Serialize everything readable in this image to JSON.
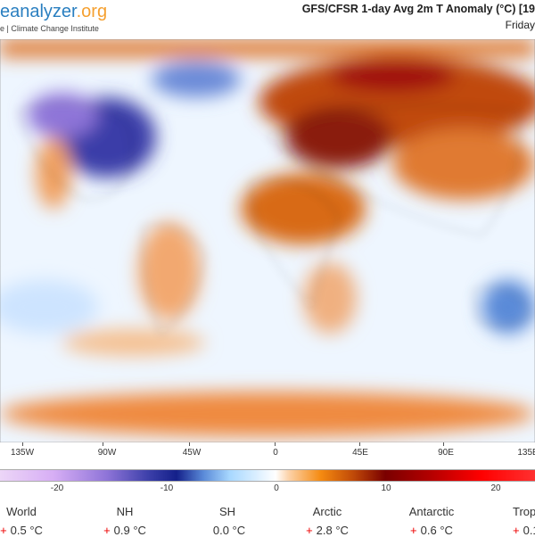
{
  "header": {
    "logo_main": "eanalyzer",
    "logo_suffix": ".org",
    "subtitle": "e | Climate Change Institute",
    "title": "GFS/CFSR 1-day Avg 2m T Anomaly (°C) [19",
    "date": "Friday"
  },
  "map": {
    "longitude_ticks": [
      "135W",
      "90W",
      "45W",
      "0",
      "45E",
      "90E",
      "135E"
    ]
  },
  "colorbar": {
    "labels": [
      "-20",
      "-10",
      "0",
      "10",
      "20"
    ],
    "range": [
      -25,
      25
    ],
    "colors": {
      "cold": "#14208a",
      "neutral": "#ffffff",
      "warm": "#f58a10",
      "hot": "#7a0000",
      "extreme": "#ff0000"
    }
  },
  "stats": [
    {
      "label": "World",
      "sign": "+",
      "value": "0.5 °C"
    },
    {
      "label": "NH",
      "sign": "+",
      "value": "0.9 °C"
    },
    {
      "label": "SH",
      "sign": "",
      "value": "0.0 °C"
    },
    {
      "label": "Arctic",
      "sign": "+",
      "value": "2.8 °C"
    },
    {
      "label": "Antarctic",
      "sign": "+",
      "value": "0.6 °C"
    },
    {
      "label": "Tropi",
      "sign": "+",
      "value": "0.1"
    }
  ]
}
